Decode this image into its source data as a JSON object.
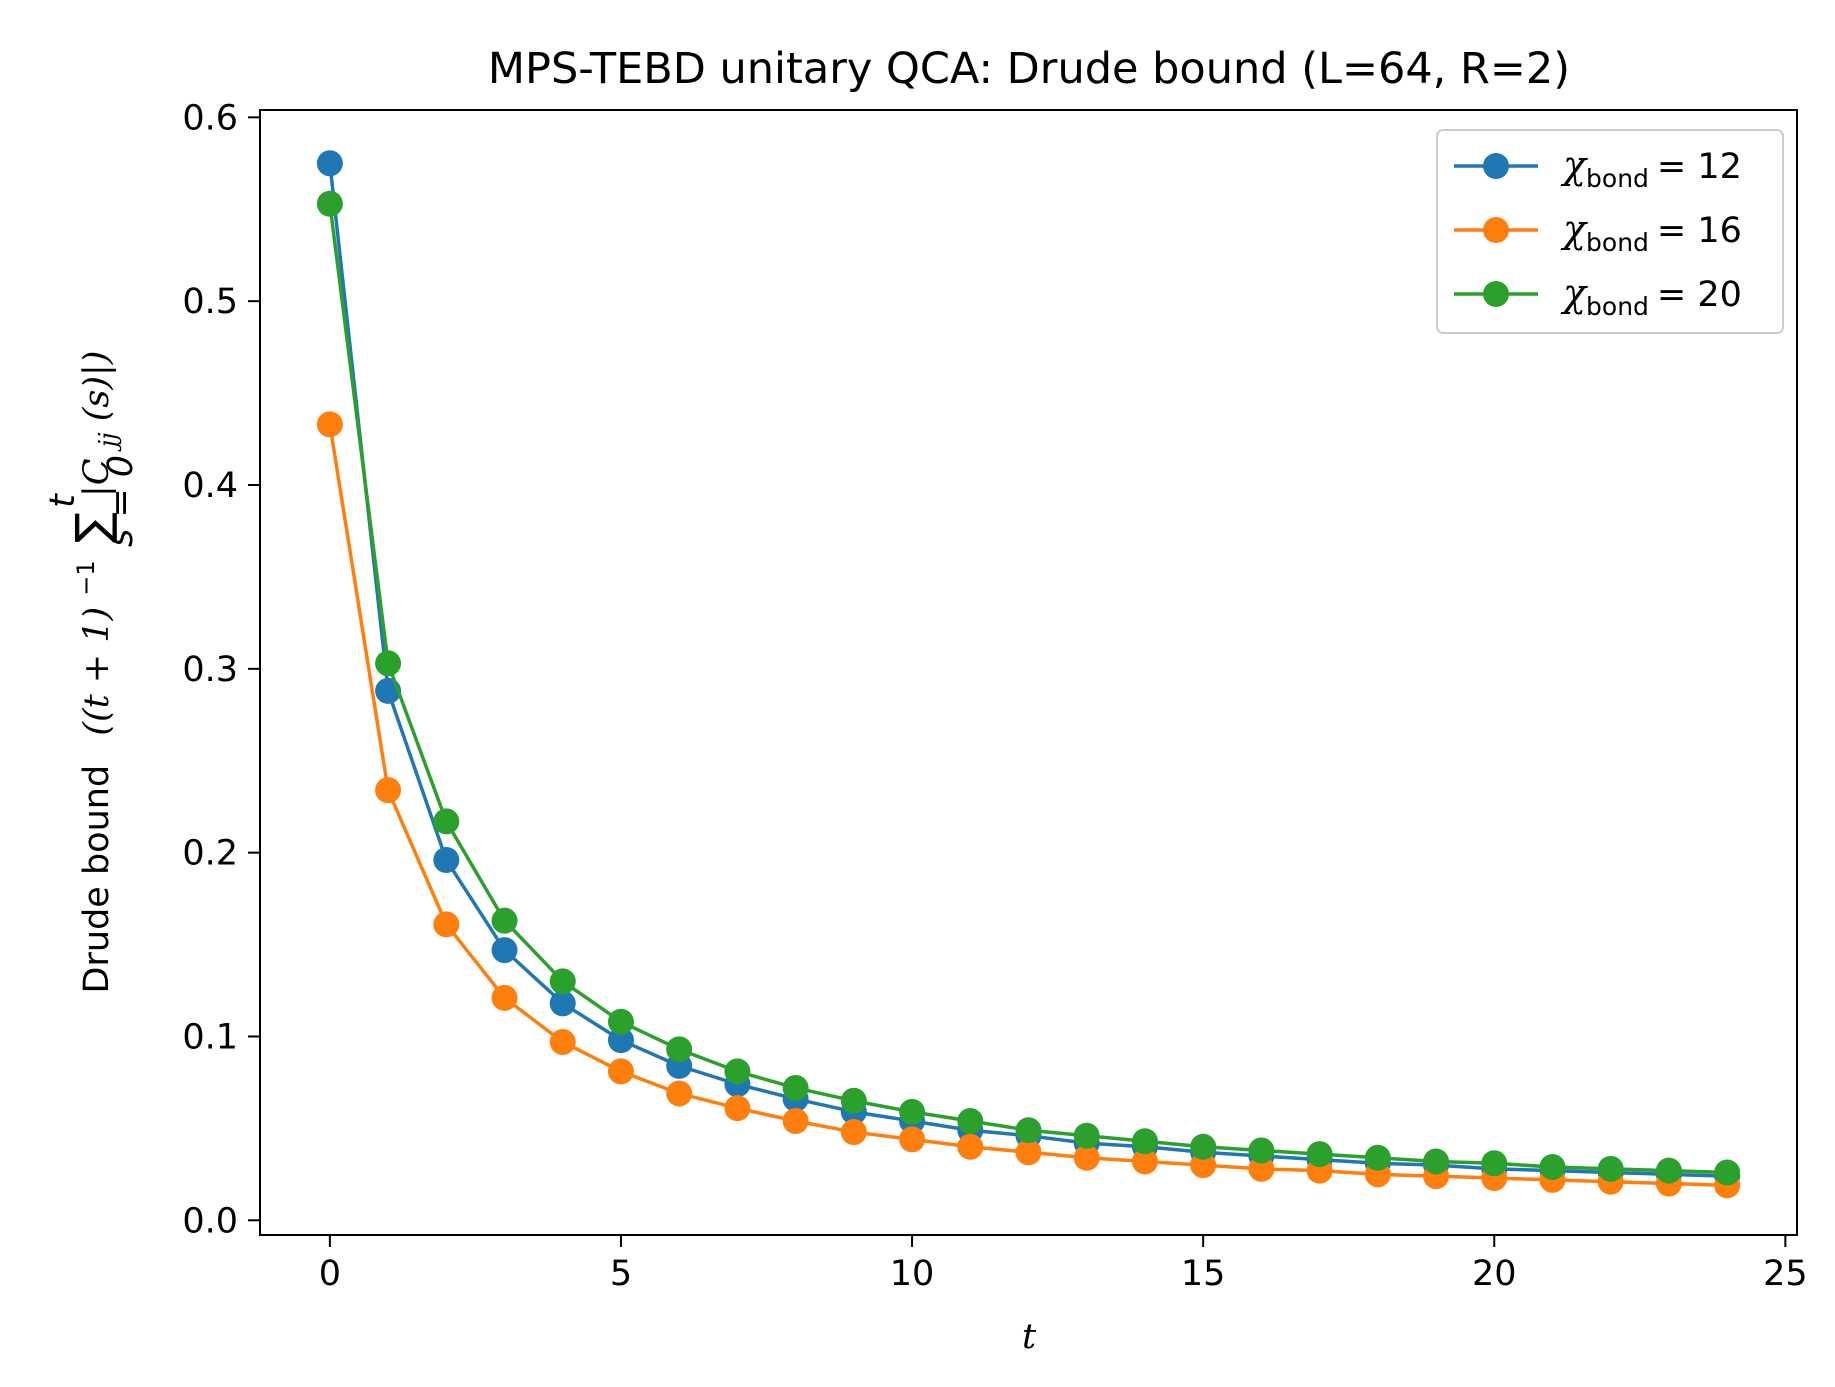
{
  "chart_data": {
    "type": "line",
    "title": "MPS-TEBD unitary QCA: Drude bound (L=64, R=2)",
    "xlabel": "t",
    "ylabel": {
      "prefix": "Drude bound",
      "open": "((t + 1)",
      "exp": "−1",
      "sum": "∑",
      "sum_upper": "t",
      "sum_lower": "s = 0",
      "term": "|C",
      "term_sub": "jj",
      "term_rest": "(s)|)"
    },
    "xlim": [
      -1.2,
      25.2
    ],
    "ylim": [
      -0.008,
      0.604
    ],
    "xticks": [
      0,
      5,
      10,
      15,
      20,
      25
    ],
    "yticks": [
      0.0,
      0.1,
      0.2,
      0.3,
      0.4,
      0.5,
      0.6
    ],
    "ytick_labels": [
      "0.0",
      "0.1",
      "0.2",
      "0.3",
      "0.4",
      "0.5",
      "0.6"
    ],
    "x": [
      0,
      1,
      2,
      3,
      4,
      5,
      6,
      7,
      8,
      9,
      10,
      11,
      12,
      13,
      14,
      15,
      16,
      17,
      18,
      19,
      20,
      21,
      22,
      23,
      24
    ],
    "series": [
      {
        "name": "χbond = 12",
        "chi_symbol": "χ",
        "chi_sub": "bond",
        "chi_value": "= 12",
        "color": "#1f77b4",
        "values": [
          0.575,
          0.288,
          0.196,
          0.147,
          0.118,
          0.098,
          0.084,
          0.074,
          0.066,
          0.059,
          0.054,
          0.049,
          0.046,
          0.042,
          0.04,
          0.037,
          0.035,
          0.033,
          0.031,
          0.03,
          0.028,
          0.027,
          0.026,
          0.025,
          0.024
        ]
      },
      {
        "name": "χbond = 16",
        "chi_symbol": "χ",
        "chi_sub": "bond",
        "chi_value": "= 16",
        "color": "#ff7f0e",
        "values": [
          0.433,
          0.234,
          0.161,
          0.121,
          0.097,
          0.081,
          0.069,
          0.061,
          0.054,
          0.048,
          0.044,
          0.04,
          0.037,
          0.034,
          0.032,
          0.03,
          0.028,
          0.027,
          0.025,
          0.024,
          0.023,
          0.022,
          0.021,
          0.02,
          0.019
        ]
      },
      {
        "name": "χbond = 20",
        "chi_symbol": "χ",
        "chi_sub": "bond",
        "chi_value": "= 20",
        "color": "#2ca02c",
        "values": [
          0.553,
          0.303,
          0.217,
          0.163,
          0.13,
          0.108,
          0.093,
          0.081,
          0.072,
          0.065,
          0.059,
          0.054,
          0.049,
          0.046,
          0.043,
          0.04,
          0.038,
          0.036,
          0.034,
          0.032,
          0.031,
          0.029,
          0.028,
          0.027,
          0.026
        ]
      }
    ],
    "legend_position": "upper right",
    "grid": false
  }
}
